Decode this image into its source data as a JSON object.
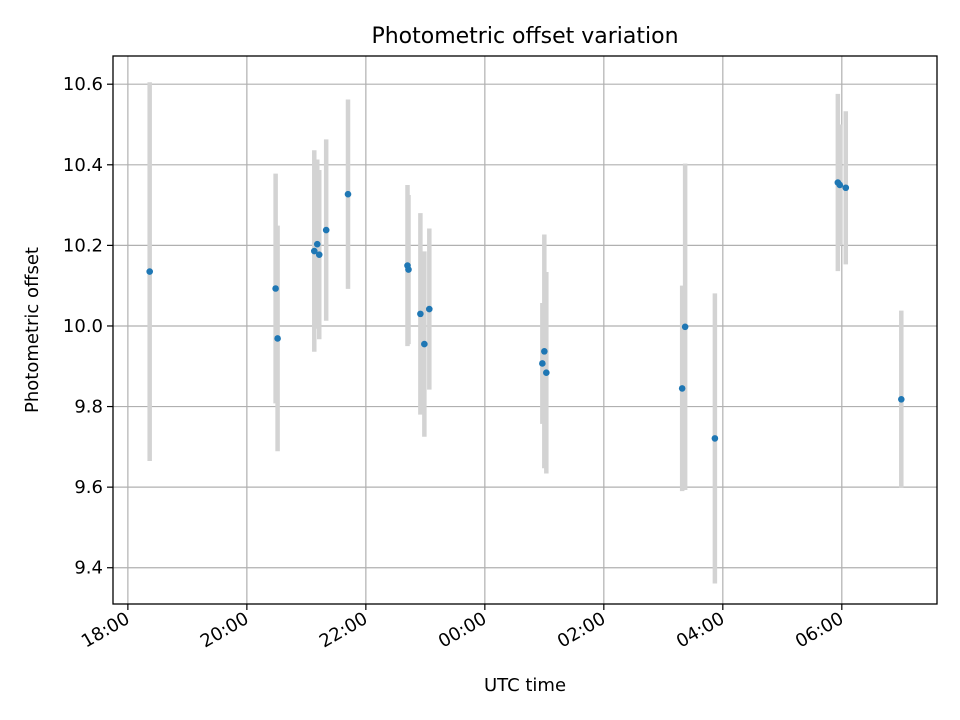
{
  "chart_data": {
    "type": "scatter",
    "title": "Photometric offset variation",
    "xlabel": "UTC time",
    "ylabel": "Photometric offset",
    "xlim": [
      "17:45",
      "31:36"
    ],
    "ylim": [
      9.31,
      10.67
    ],
    "x_ticks": [
      {
        "value": "18:00",
        "label": "18:00"
      },
      {
        "value": "20:00",
        "label": "20:00"
      },
      {
        "value": "22:00",
        "label": "22:00"
      },
      {
        "value": "24:00",
        "label": "00:00"
      },
      {
        "value": "26:00",
        "label": "02:00"
      },
      {
        "value": "28:00",
        "label": "04:00"
      },
      {
        "value": "30:00",
        "label": "06:00"
      }
    ],
    "y_ticks": [
      9.4,
      9.6,
      9.8,
      10.0,
      10.2,
      10.4,
      10.6
    ],
    "y_tick_labels": [
      "9.4",
      "9.6",
      "9.8",
      "10.0",
      "10.2",
      "10.4",
      "10.6"
    ],
    "grid": true,
    "colors": {
      "points": "#1f77b4",
      "errorbars": "#d3d3d3",
      "grid": "#b0b0b0"
    },
    "points": [
      {
        "x": "18:22",
        "y": 10.135,
        "err": 0.47
      },
      {
        "x": "20:29",
        "y": 10.093,
        "err": 0.285
      },
      {
        "x": "20:31",
        "y": 9.969,
        "err": 0.28
      },
      {
        "x": "21:08",
        "y": 10.186,
        "err": 0.25
      },
      {
        "x": "21:11",
        "y": 10.203,
        "err": 0.21
      },
      {
        "x": "21:13",
        "y": 10.177,
        "err": 0.21
      },
      {
        "x": "21:20",
        "y": 10.238,
        "err": 0.225
      },
      {
        "x": "21:42",
        "y": 10.327,
        "err": 0.235
      },
      {
        "x": "22:42",
        "y": 10.15,
        "err": 0.2
      },
      {
        "x": "22:43",
        "y": 10.14,
        "err": 0.185
      },
      {
        "x": "22:55",
        "y": 10.03,
        "err": 0.25
      },
      {
        "x": "22:59",
        "y": 9.955,
        "err": 0.23
      },
      {
        "x": "23:04",
        "y": 10.042,
        "err": 0.2
      },
      {
        "x": "24:58",
        "y": 9.907,
        "err": 0.15
      },
      {
        "x": "25:00",
        "y": 9.937,
        "err": 0.29
      },
      {
        "x": "25:02",
        "y": 9.884,
        "err": 0.25
      },
      {
        "x": "27:19",
        "y": 9.845,
        "err": 0.255
      },
      {
        "x": "27:22",
        "y": 9.998,
        "err": 0.405
      },
      {
        "x": "27:52",
        "y": 9.721,
        "err": 0.36
      },
      {
        "x": "29:56",
        "y": 10.356,
        "err": 0.22
      },
      {
        "x": "29:58",
        "y": 10.35,
        "err": 0.15
      },
      {
        "x": "30:04",
        "y": 10.343,
        "err": 0.19
      },
      {
        "x": "31:00",
        "y": 9.818,
        "err": 0.22
      }
    ]
  }
}
